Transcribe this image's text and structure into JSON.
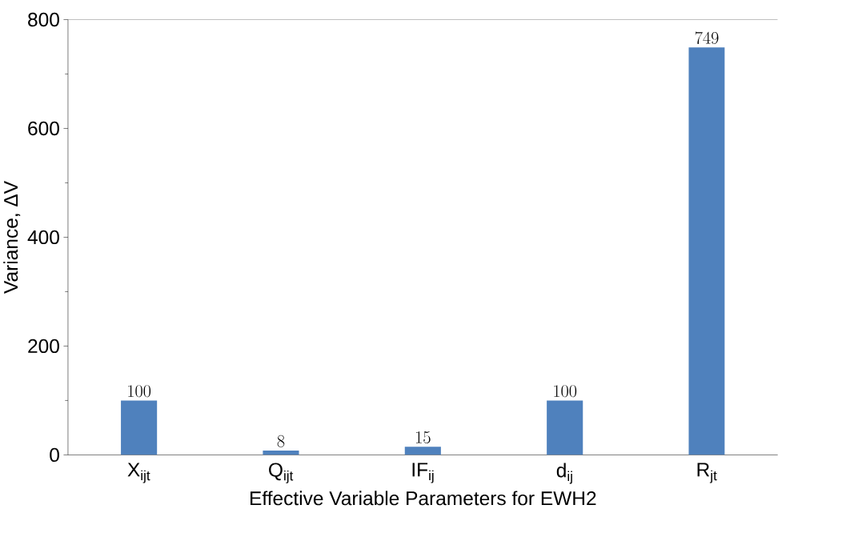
{
  "chart_data": {
    "type": "bar",
    "xlabel": "Effective Variable Parameters for EWH2",
    "ylabel": "Variance, ΔV",
    "categories": [
      "X$_{ijt}$",
      "Q$_{ijt}$",
      "IF$_{ij}$",
      "d$_{ij}$",
      "R$_{jt}$"
    ],
    "values": [
      100,
      8,
      15,
      100,
      749
    ],
    "color": "#4f81bd",
    "ylim": [
      0,
      800
    ],
    "yticks": [
      0,
      200,
      400,
      600,
      800
    ],
    "data_labels": true,
    "grid": false
  }
}
